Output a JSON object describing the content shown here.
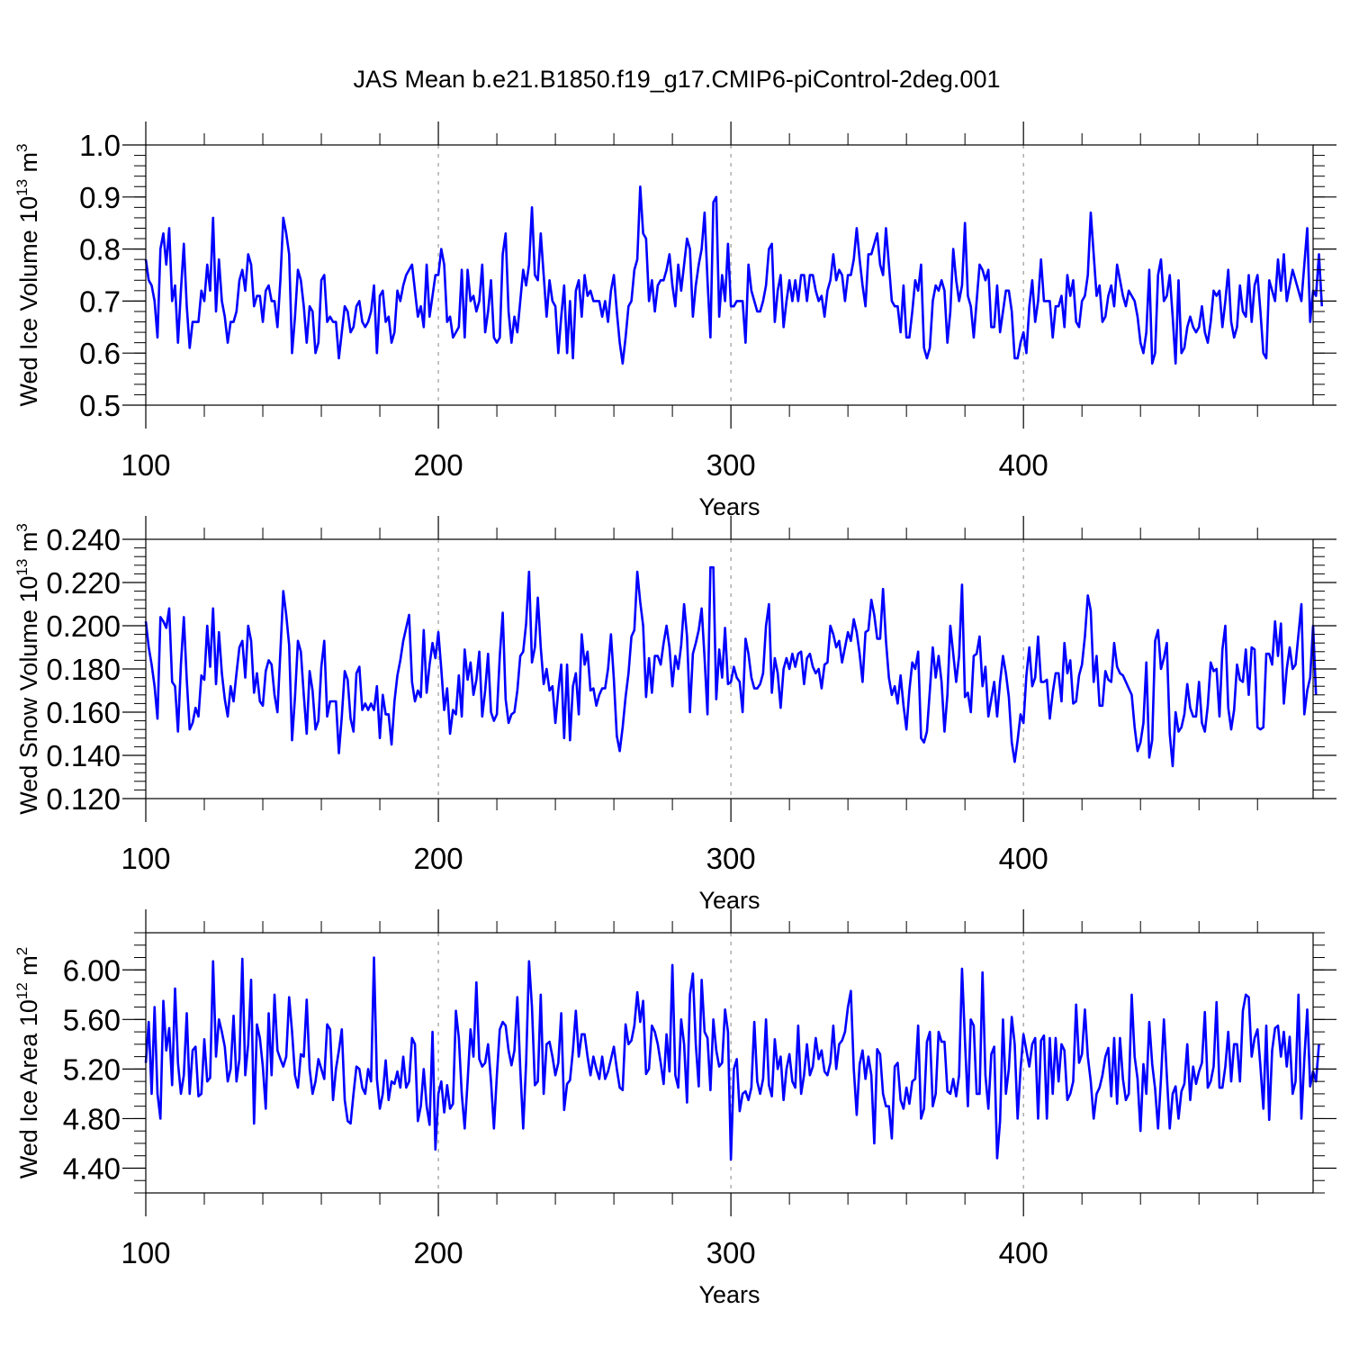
{
  "title": "JAS Mean b.e21.B1850.f19_g17.CMIP6-piControl-2deg.001",
  "colors": {
    "line": "#0000ff",
    "axis": "#000000",
    "grid": "#999999"
  },
  "chart_data": [
    {
      "type": "line",
      "xlabel": "Years",
      "ylabel_main": "Wed Ice Volume 10",
      "ylabel_exp": "13",
      "ylabel_unit": " m",
      "ylabel_unit_exp": "3",
      "xlim": [
        100,
        499
      ],
      "ylim": [
        0.5,
        1.0
      ],
      "xticks": [
        "100",
        "200",
        "300",
        "400"
      ],
      "yticks": [
        "0.5",
        "0.6",
        "0.7",
        "0.8",
        "0.9",
        "1.0"
      ],
      "x_start": 100,
      "values": [
        0.78,
        0.74,
        0.73,
        0.7,
        0.63,
        0.8,
        0.83,
        0.77,
        0.84,
        0.7,
        0.73,
        0.62,
        0.72,
        0.81,
        0.69,
        0.61,
        0.66,
        0.66,
        0.66,
        0.72,
        0.7,
        0.77,
        0.72,
        0.86,
        0.68,
        0.78,
        0.7,
        0.67,
        0.62,
        0.66,
        0.66,
        0.68,
        0.74,
        0.76,
        0.72,
        0.79,
        0.77,
        0.69,
        0.71,
        0.71,
        0.66,
        0.72,
        0.73,
        0.7,
        0.7,
        0.65,
        0.74,
        0.86,
        0.83,
        0.79,
        0.6,
        0.67,
        0.76,
        0.74,
        0.69,
        0.62,
        0.69,
        0.68,
        0.6,
        0.62,
        0.74,
        0.75,
        0.66,
        0.67,
        0.66,
        0.66,
        0.59,
        0.64,
        0.69,
        0.68,
        0.64,
        0.65,
        0.69,
        0.7,
        0.66,
        0.65,
        0.66,
        0.68,
        0.73,
        0.6,
        0.71,
        0.72,
        0.66,
        0.67,
        0.62,
        0.64,
        0.72,
        0.7,
        0.73,
        0.75,
        0.76,
        0.77,
        0.72,
        0.67,
        0.69,
        0.65,
        0.77,
        0.67,
        0.71,
        0.75,
        0.75,
        0.8,
        0.77,
        0.66,
        0.67,
        0.63,
        0.64,
        0.65,
        0.76,
        0.63,
        0.76,
        0.7,
        0.71,
        0.68,
        0.7,
        0.77,
        0.64,
        0.68,
        0.74,
        0.63,
        0.62,
        0.63,
        0.79,
        0.83,
        0.68,
        0.62,
        0.67,
        0.64,
        0.7,
        0.76,
        0.73,
        0.77,
        0.88,
        0.75,
        0.74,
        0.83,
        0.75,
        0.67,
        0.74,
        0.7,
        0.69,
        0.6,
        0.67,
        0.73,
        0.6,
        0.7,
        0.59,
        0.72,
        0.74,
        0.67,
        0.75,
        0.71,
        0.72,
        0.7,
        0.7,
        0.7,
        0.67,
        0.7,
        0.66,
        0.72,
        0.75,
        0.68,
        0.62,
        0.58,
        0.63,
        0.69,
        0.7,
        0.76,
        0.78,
        0.92,
        0.83,
        0.82,
        0.7,
        0.74,
        0.68,
        0.73,
        0.74,
        0.74,
        0.76,
        0.79,
        0.73,
        0.69,
        0.77,
        0.72,
        0.77,
        0.82,
        0.8,
        0.67,
        0.73,
        0.77,
        0.8,
        0.87,
        0.74,
        0.63,
        0.89,
        0.9,
        0.67,
        0.75,
        0.7,
        0.81,
        0.69,
        0.69,
        0.7,
        0.7,
        0.7,
        0.62,
        0.77,
        0.72,
        0.7,
        0.68,
        0.68,
        0.7,
        0.73,
        0.8,
        0.81,
        0.66,
        0.72,
        0.75,
        0.65,
        0.7,
        0.74,
        0.7,
        0.74,
        0.7,
        0.75,
        0.75,
        0.7,
        0.75,
        0.75,
        0.72,
        0.7,
        0.71,
        0.67,
        0.72,
        0.74,
        0.79,
        0.74,
        0.76,
        0.75,
        0.7,
        0.75,
        0.75,
        0.78,
        0.84,
        0.78,
        0.73,
        0.69,
        0.79,
        0.79,
        0.81,
        0.83,
        0.77,
        0.75,
        0.84,
        0.77,
        0.7,
        0.69,
        0.69,
        0.64,
        0.73,
        0.63,
        0.63,
        0.68,
        0.74,
        0.72,
        0.77,
        0.61,
        0.59,
        0.61,
        0.7,
        0.73,
        0.72,
        0.74,
        0.72,
        0.62,
        0.68,
        0.8,
        0.74,
        0.7,
        0.73,
        0.85,
        0.71,
        0.69,
        0.63,
        0.7,
        0.77,
        0.76,
        0.74,
        0.76,
        0.65,
        0.65,
        0.73,
        0.64,
        0.68,
        0.72,
        0.72,
        0.68,
        0.59,
        0.59,
        0.62,
        0.64,
        0.6,
        0.69,
        0.74,
        0.66,
        0.7,
        0.78,
        0.7,
        0.7,
        0.7,
        0.63,
        0.69,
        0.69,
        0.71,
        0.65,
        0.75,
        0.71,
        0.74,
        0.66,
        0.65,
        0.7,
        0.71,
        0.75,
        0.87,
        0.79,
        0.71,
        0.73,
        0.66,
        0.67,
        0.71,
        0.73,
        0.69,
        0.77,
        0.74,
        0.71,
        0.69,
        0.72,
        0.71,
        0.7,
        0.67,
        0.62,
        0.6,
        0.64,
        0.76,
        0.58,
        0.6,
        0.75,
        0.78,
        0.7,
        0.71,
        0.75,
        0.67,
        0.58,
        0.74,
        0.6,
        0.61,
        0.65,
        0.67,
        0.65,
        0.64,
        0.65,
        0.69,
        0.64,
        0.62,
        0.66,
        0.72,
        0.71,
        0.72,
        0.65,
        0.7,
        0.76,
        0.66,
        0.63,
        0.65,
        0.73,
        0.68,
        0.67,
        0.75,
        0.66,
        0.73,
        0.75,
        0.68,
        0.6,
        0.59,
        0.74,
        0.72,
        0.7,
        0.78,
        0.72,
        0.79,
        0.7,
        0.73,
        0.76,
        0.74,
        0.72,
        0.7,
        0.77,
        0.84,
        0.66,
        0.72,
        0.71,
        0.79,
        0.69
      ]
    },
    {
      "type": "line",
      "xlabel": "Years",
      "ylabel_main": "Wed Snow Volume 10",
      "ylabel_exp": "13",
      "ylabel_unit": " m",
      "ylabel_unit_exp": "3",
      "xlim": [
        100,
        499
      ],
      "ylim": [
        0.12,
        0.24
      ],
      "xticks": [
        "100",
        "200",
        "300",
        "400"
      ],
      "yticks": [
        "0.120",
        "0.140",
        "0.160",
        "0.180",
        "0.200",
        "0.220",
        "0.240"
      ],
      "x_start": 100,
      "values": [
        0.202,
        0.19,
        0.182,
        0.172,
        0.157,
        0.204,
        0.202,
        0.199,
        0.208,
        0.174,
        0.172,
        0.151,
        0.182,
        0.204,
        0.175,
        0.152,
        0.155,
        0.162,
        0.158,
        0.177,
        0.175,
        0.2,
        0.181,
        0.208,
        0.173,
        0.197,
        0.178,
        0.166,
        0.158,
        0.172,
        0.165,
        0.178,
        0.19,
        0.193,
        0.176,
        0.2,
        0.193,
        0.169,
        0.178,
        0.165,
        0.163,
        0.179,
        0.184,
        0.182,
        0.168,
        0.16,
        0.188,
        0.216,
        0.205,
        0.191,
        0.147,
        0.167,
        0.193,
        0.188,
        0.168,
        0.15,
        0.179,
        0.17,
        0.152,
        0.156,
        0.181,
        0.193,
        0.158,
        0.165,
        0.165,
        0.165,
        0.141,
        0.158,
        0.179,
        0.175,
        0.157,
        0.151,
        0.178,
        0.181,
        0.161,
        0.164,
        0.161,
        0.164,
        0.161,
        0.172,
        0.148,
        0.168,
        0.159,
        0.159,
        0.145,
        0.165,
        0.177,
        0.184,
        0.193,
        0.199,
        0.205,
        0.174,
        0.165,
        0.17,
        0.167,
        0.198,
        0.169,
        0.182,
        0.192,
        0.185,
        0.197,
        0.18,
        0.161,
        0.171,
        0.15,
        0.161,
        0.159,
        0.177,
        0.158,
        0.189,
        0.175,
        0.183,
        0.168,
        0.175,
        0.188,
        0.158,
        0.17,
        0.187,
        0.16,
        0.156,
        0.159,
        0.186,
        0.206,
        0.166,
        0.155,
        0.159,
        0.16,
        0.17,
        0.186,
        0.188,
        0.201,
        0.225,
        0.183,
        0.19,
        0.213,
        0.19,
        0.173,
        0.18,
        0.17,
        0.172,
        0.155,
        0.17,
        0.182,
        0.148,
        0.182,
        0.147,
        0.172,
        0.178,
        0.159,
        0.196,
        0.182,
        0.188,
        0.17,
        0.171,
        0.163,
        0.168,
        0.171,
        0.171,
        0.18,
        0.196,
        0.175,
        0.149,
        0.142,
        0.153,
        0.167,
        0.178,
        0.195,
        0.198,
        0.225,
        0.211,
        0.2,
        0.167,
        0.185,
        0.169,
        0.186,
        0.186,
        0.182,
        0.192,
        0.2,
        0.19,
        0.172,
        0.186,
        0.18,
        0.191,
        0.21,
        0.195,
        0.16,
        0.187,
        0.192,
        0.198,
        0.208,
        0.185,
        0.159,
        0.227,
        0.227,
        0.166,
        0.189,
        0.176,
        0.199,
        0.173,
        0.174,
        0.181,
        0.176,
        0.174,
        0.16,
        0.194,
        0.187,
        0.176,
        0.171,
        0.171,
        0.173,
        0.178,
        0.2,
        0.21,
        0.169,
        0.185,
        0.178,
        0.162,
        0.18,
        0.185,
        0.18,
        0.187,
        0.181,
        0.187,
        0.188,
        0.173,
        0.185,
        0.187,
        0.181,
        0.178,
        0.18,
        0.171,
        0.182,
        0.183,
        0.2,
        0.196,
        0.19,
        0.193,
        0.183,
        0.19,
        0.197,
        0.193,
        0.203,
        0.197,
        0.187,
        0.174,
        0.197,
        0.198,
        0.212,
        0.205,
        0.194,
        0.194,
        0.217,
        0.193,
        0.176,
        0.168,
        0.172,
        0.164,
        0.177,
        0.163,
        0.152,
        0.17,
        0.183,
        0.18,
        0.188,
        0.148,
        0.146,
        0.151,
        0.17,
        0.19,
        0.176,
        0.186,
        0.174,
        0.151,
        0.168,
        0.2,
        0.187,
        0.174,
        0.186,
        0.219,
        0.167,
        0.169,
        0.16,
        0.186,
        0.187,
        0.195,
        0.172,
        0.181,
        0.158,
        0.166,
        0.174,
        0.158,
        0.174,
        0.186,
        0.178,
        0.167,
        0.146,
        0.137,
        0.147,
        0.159,
        0.155,
        0.177,
        0.19,
        0.172,
        0.176,
        0.195,
        0.174,
        0.174,
        0.175,
        0.157,
        0.169,
        0.178,
        0.178,
        0.165,
        0.192,
        0.178,
        0.184,
        0.164,
        0.165,
        0.177,
        0.182,
        0.195,
        0.214,
        0.207,
        0.174,
        0.186,
        0.163,
        0.163,
        0.179,
        0.175,
        0.174,
        0.192,
        0.181,
        0.178,
        0.177,
        0.174,
        0.171,
        0.168,
        0.153,
        0.142,
        0.146,
        0.155,
        0.183,
        0.139,
        0.147,
        0.193,
        0.198,
        0.18,
        0.185,
        0.192,
        0.15,
        0.135,
        0.16,
        0.151,
        0.153,
        0.159,
        0.173,
        0.162,
        0.158,
        0.158,
        0.174,
        0.155,
        0.151,
        0.163,
        0.183,
        0.179,
        0.18,
        0.158,
        0.189,
        0.2,
        0.162,
        0.152,
        0.161,
        0.182,
        0.175,
        0.174,
        0.189,
        0.168,
        0.19,
        0.189,
        0.153,
        0.152,
        0.153,
        0.187,
        0.187,
        0.182,
        0.202,
        0.186,
        0.201,
        0.164,
        0.18,
        0.19,
        0.18,
        0.182,
        0.196,
        0.21,
        0.159,
        0.17,
        0.176,
        0.2,
        0.168
      ]
    },
    {
      "type": "line",
      "xlabel": "Years",
      "ylabel_main": "Wed Ice Area 10",
      "ylabel_exp": "12",
      "ylabel_unit": " m",
      "ylabel_unit_exp": "2",
      "xlim": [
        100,
        499
      ],
      "ylim": [
        4.2,
        6.3
      ],
      "xticks": [
        "100",
        "200",
        "300",
        "400"
      ],
      "yticks": [
        "4.40",
        "4.80",
        "5.20",
        "5.60",
        "6.00"
      ],
      "y_minor_step": 0.1,
      "x_start": 100,
      "values": [
        5.25,
        5.58,
        5.0,
        5.7,
        5.0,
        4.8,
        5.75,
        5.35,
        5.53,
        5.07,
        5.85,
        5.25,
        5.0,
        5.15,
        5.65,
        5.0,
        5.35,
        5.38,
        4.98,
        5.0,
        5.44,
        5.1,
        5.13,
        6.07,
        5.3,
        5.6,
        5.5,
        5.38,
        5.1,
        5.2,
        5.63,
        5.1,
        5.28,
        6.09,
        5.15,
        5.4,
        5.92,
        4.76,
        5.56,
        5.45,
        5.22,
        4.88,
        5.65,
        5.15,
        5.8,
        5.35,
        5.28,
        5.22,
        5.3,
        5.78,
        5.5,
        5.15,
        5.05,
        5.32,
        5.3,
        5.76,
        5.2,
        5.0,
        5.1,
        5.28,
        5.2,
        5.12,
        5.56,
        5.52,
        4.95,
        5.2,
        5.35,
        5.52,
        4.95,
        4.78,
        4.76,
        5.0,
        5.22,
        5.2,
        5.05,
        5.0,
        5.2,
        5.1,
        6.1,
        5.12,
        4.88,
        5.0,
        5.27,
        4.95,
        5.1,
        5.08,
        5.18,
        5.05,
        5.3,
        5.05,
        5.1,
        5.45,
        5.4,
        4.78,
        4.9,
        5.2,
        4.9,
        4.75,
        5.5,
        4.55,
        5.0,
        5.1,
        4.85,
        5.07,
        4.88,
        4.92,
        5.67,
        5.45,
        5.0,
        4.72,
        5.1,
        5.52,
        5.3,
        5.9,
        5.28,
        5.22,
        5.25,
        5.4,
        5.1,
        4.72,
        5.15,
        5.52,
        5.58,
        5.55,
        5.35,
        5.23,
        5.35,
        5.78,
        5.2,
        4.72,
        5.25,
        6.07,
        5.7,
        5.07,
        5.1,
        5.8,
        5.0,
        5.4,
        5.42,
        5.3,
        5.15,
        5.25,
        5.65,
        4.87,
        5.08,
        5.11,
        5.35,
        5.67,
        5.3,
        5.48,
        5.48,
        5.3,
        5.15,
        5.3,
        5.2,
        5.12,
        5.3,
        5.12,
        5.18,
        5.28,
        5.38,
        5.2,
        5.05,
        5.03,
        5.56,
        5.4,
        5.43,
        5.55,
        5.82,
        5.58,
        5.75,
        5.16,
        5.2,
        5.55,
        5.5,
        5.4,
        5.25,
        5.08,
        5.48,
        5.18,
        6.04,
        5.15,
        5.05,
        5.6,
        5.4,
        4.93,
        5.8,
        5.97,
        5.4,
        5.06,
        5.92,
        5.5,
        5.45,
        5.03,
        5.6,
        5.35,
        5.22,
        5.25,
        5.68,
        5.5,
        4.47,
        5.2,
        5.28,
        4.86,
        5.0,
        5.02,
        4.95,
        5.05,
        5.58,
        5.1,
        5.0,
        5.12,
        5.6,
        5.07,
        4.98,
        5.44,
        5.2,
        5.3,
        4.95,
        5.2,
        5.32,
        5.1,
        5.05,
        5.55,
        5.0,
        5.15,
        5.4,
        5.15,
        5.22,
        5.45,
        5.28,
        5.35,
        5.18,
        5.15,
        5.25,
        5.55,
        5.2,
        5.4,
        5.43,
        5.5,
        5.7,
        5.83,
        5.2,
        4.83,
        5.24,
        5.35,
        5.12,
        5.3,
        5.15,
        4.6,
        5.36,
        5.32,
        5.0,
        4.9,
        4.9,
        4.64,
        5.22,
        5.25,
        4.95,
        4.88,
        5.05,
        4.92,
        5.1,
        5.12,
        5.55,
        4.8,
        4.88,
        5.42,
        5.5,
        4.9,
        5.0,
        5.5,
        5.42,
        5.42,
        5.02,
        5.0,
        5.12,
        4.98,
        5.15,
        6.01,
        5.43,
        4.9,
        5.6,
        5.55,
        5.0,
        5.0,
        5.98,
        5.15,
        4.88,
        5.32,
        5.38,
        4.48,
        4.78,
        5.6,
        5.0,
        5.2,
        5.62,
        5.4,
        4.8,
        5.2,
        5.48,
        5.35,
        5.22,
        5.4,
        5.45,
        4.8,
        5.43,
        5.47,
        4.8,
        5.45,
        5.0,
        5.45,
        5.1,
        5.4,
        5.35,
        4.95,
        5.0,
        5.1,
        5.72,
        5.25,
        5.32,
        5.68,
        5.3,
        5.1,
        4.8,
        5.0,
        5.05,
        5.15,
        5.3,
        5.37,
        4.98,
        5.45,
        4.92,
        5.45,
        5.12,
        4.95,
        5.0,
        5.8,
        5.3,
        5.12,
        4.7,
        5.24,
        5.0,
        5.58,
        5.24,
        5.04,
        4.72,
        5.12,
        5.6,
        5.15,
        4.72,
        5.0,
        5.06,
        4.8,
        5.02,
        5.08,
        5.4,
        4.95,
        5.22,
        5.08,
        5.18,
        5.25,
        5.66,
        5.05,
        5.1,
        5.22,
        5.74,
        5.05,
        5.05,
        5.22,
        5.5,
        5.1,
        5.4,
        5.4,
        5.1,
        5.67,
        5.8,
        5.78,
        5.3,
        5.45,
        5.52,
        5.22,
        4.88,
        5.55,
        4.79,
        5.35,
        5.53,
        5.55,
        5.3,
        5.5,
        5.22,
        5.46,
        5.0,
        5.1,
        5.8,
        4.8,
        5.28,
        5.68,
        5.06,
        5.18,
        5.1,
        5.4
      ]
    }
  ]
}
